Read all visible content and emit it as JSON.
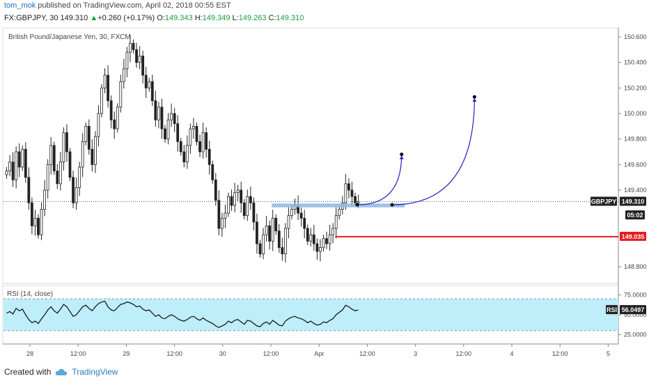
{
  "header": {
    "author": "tom_mok",
    "published_text": " published on TradingView.com, April 02, 2018 00:55 EST",
    "symbol": "FX:GBPJPY, 30",
    "last": "149.310",
    "change_arrow": "▲",
    "change": "+0.260 (+0.17%)",
    "o_label": "O:",
    "o_value": "149.343",
    "h_label": "H:",
    "h_value": "149.349",
    "l_label": "L:",
    "l_value": "149.263",
    "c_label": "C:",
    "c_value": "149.310"
  },
  "footer": {
    "created_with": "Created with",
    "brand": "TradingView"
  },
  "colors": {
    "candle": "#222222",
    "rsi_band": "#bdeefa",
    "rsi_line": "#1a1a1a",
    "resistance": "#e31b1b",
    "zone": "#8db8e0",
    "arrow": "#2424c8",
    "badge_dark": "#222222",
    "badge_red": "#e31b1b"
  },
  "chart_data": [
    {
      "type": "candlestick",
      "title": "British Pound/Japanese Yen, 30, FXCM",
      "yaxis_ticks": [
        "150.600",
        "150.400",
        "150.200",
        "150.000",
        "149.800",
        "149.600",
        "149.400",
        "148.800"
      ],
      "ylim": [
        148.68,
        150.66
      ],
      "xaxis_ticks": [
        "28",
        "12:00",
        "29",
        "12:00",
        "30",
        "12:00",
        "Apr",
        "12:00",
        "3",
        "12:00",
        "4",
        "12:00",
        "5"
      ],
      "price_badges": [
        {
          "text": "GBPJPY",
          "value": 149.31,
          "style": "dark"
        },
        {
          "text": "149.310",
          "value": 149.31,
          "style": "dark"
        },
        {
          "text": "05:02",
          "value": 149.225,
          "style": "dark"
        },
        {
          "text": "149.035",
          "value": 149.035,
          "style": "red"
        }
      ],
      "last_price": 149.31,
      "resistance_level": 149.035,
      "support_zone": [
        149.265,
        149.295
      ],
      "closes": [
        149.55,
        149.62,
        149.48,
        149.7,
        149.58,
        149.72,
        149.5,
        149.3,
        149.12,
        149.18,
        149.05,
        149.25,
        149.4,
        149.6,
        149.75,
        149.55,
        149.45,
        149.62,
        149.85,
        149.7,
        149.5,
        149.3,
        149.42,
        149.58,
        149.78,
        149.9,
        149.72,
        149.6,
        149.82,
        150.0,
        150.2,
        150.3,
        150.1,
        149.95,
        149.88,
        150.05,
        150.25,
        150.35,
        150.48,
        150.55,
        150.5,
        150.4,
        150.45,
        150.3,
        150.2,
        150.25,
        150.1,
        149.95,
        150.05,
        149.88,
        149.8,
        149.95,
        150.0,
        149.92,
        149.78,
        149.7,
        149.62,
        149.75,
        149.88,
        149.9,
        149.78,
        149.7,
        149.85,
        149.72,
        149.6,
        149.48,
        149.32,
        149.1,
        149.18,
        149.22,
        149.35,
        149.28,
        149.38,
        149.4,
        149.3,
        149.2,
        149.35,
        149.3,
        149.15,
        148.98,
        148.9,
        149.05,
        149.12,
        149.0,
        149.18,
        149.08,
        148.95,
        148.9,
        149.1,
        149.2,
        149.25,
        149.28,
        149.22,
        149.18,
        149.1,
        149.0,
        149.05,
        148.98,
        148.92,
        148.95,
        149.02,
        148.98,
        149.05,
        149.1,
        149.2,
        149.25,
        149.3,
        149.45,
        149.4,
        149.35,
        149.3,
        149.31
      ],
      "rsi": {
        "label": "RSI (14, close)",
        "badge_label": "RSI",
        "badge_value": "56.0497",
        "ticks": [
          "75.0000",
          "50.0000",
          "25.0000"
        ],
        "ylim": [
          15,
          85
        ],
        "upper": 70,
        "lower": 30,
        "values": [
          52,
          54,
          51,
          58,
          55,
          57,
          50,
          44,
          40,
          42,
          39,
          45,
          50,
          56,
          60,
          55,
          52,
          57,
          63,
          60,
          54,
          48,
          50,
          55,
          60,
          62,
          58,
          55,
          60,
          64,
          66,
          67,
          60,
          56,
          55,
          59,
          63,
          64,
          66,
          65,
          63,
          60,
          61,
          57,
          55,
          56,
          52,
          48,
          50,
          46,
          45,
          48,
          50,
          48,
          45,
          43,
          42,
          44,
          47,
          48,
          45,
          43,
          46,
          43,
          41,
          39,
          36,
          34,
          36,
          38,
          42,
          40,
          43,
          44,
          41,
          38,
          43,
          42,
          39,
          36,
          35,
          39,
          41,
          38,
          43,
          40,
          37,
          36,
          42,
          45,
          47,
          48,
          46,
          45,
          43,
          40,
          42,
          39,
          37,
          38,
          41,
          40,
          43,
          45,
          50,
          53,
          56,
          62,
          60,
          57,
          55,
          56
        ]
      },
      "projection_arrows": [
        {
          "from_bar": 111,
          "from_price": 149.285,
          "to_bar": 125,
          "to_price": 149.68
        },
        {
          "from_bar": 122,
          "from_price": 149.285,
          "to_bar": 148,
          "to_price": 150.13
        }
      ]
    }
  ]
}
